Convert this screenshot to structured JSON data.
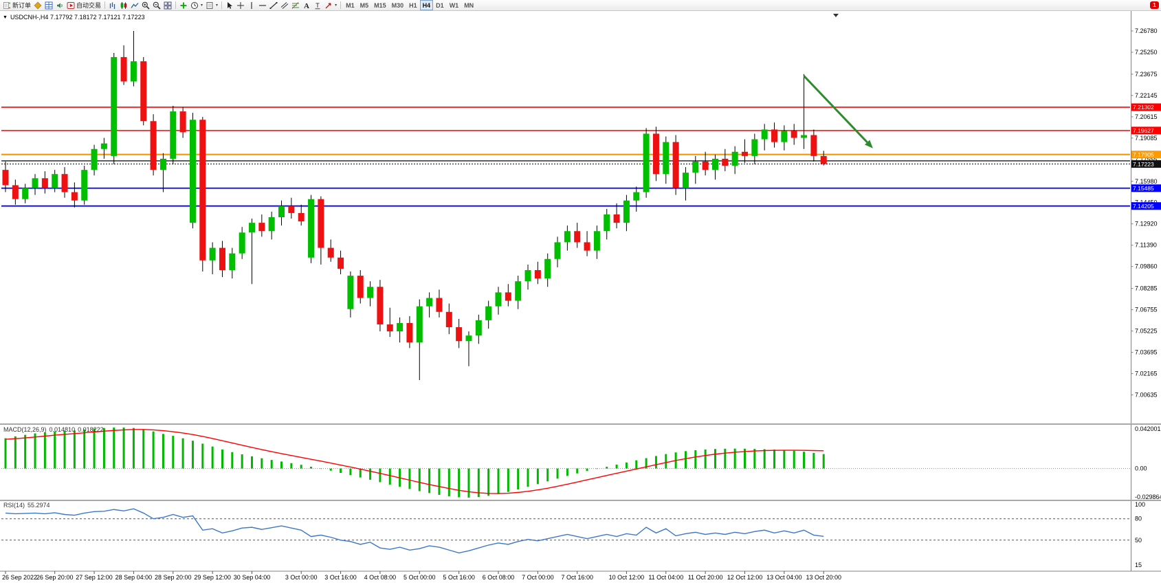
{
  "icons": {
    "chart_menu": "▼",
    "caret_down": "▾"
  },
  "toolbar": {
    "new_order_label": "新订单",
    "auto_trading_label": "自动交易",
    "notification_count": "1",
    "active_timeframe": "H4",
    "timeframes": [
      "M1",
      "M5",
      "M15",
      "M30",
      "H1",
      "H4",
      "D1",
      "W1",
      "MN"
    ],
    "groups": [
      {
        "items": [
          {
            "name": "new-order-button",
            "icon": "new-order",
            "label": "新订单"
          },
          {
            "name": "market-watch-button",
            "icon": "market-watch"
          },
          {
            "name": "data-window-button",
            "icon": "data-window"
          },
          {
            "name": "sound-button",
            "icon": "sound"
          },
          {
            "name": "auto-trading-button",
            "icon": "auto-trading",
            "label": "自动交易"
          }
        ]
      },
      {
        "items": [
          {
            "name": "bar-chart-button",
            "icon": "bars"
          },
          {
            "name": "candlestick-chart-button",
            "icon": "candles"
          },
          {
            "name": "line-chart-button",
            "icon": "line"
          },
          {
            "name": "zoom-in-button",
            "icon": "zoom-in"
          },
          {
            "name": "zoom-out-button",
            "icon": "zoom-out"
          },
          {
            "name": "tile-windows-button",
            "icon": "tile"
          }
        ]
      },
      {
        "items": [
          {
            "name": "indicators-button",
            "icon": "indicators"
          },
          {
            "name": "periods-button",
            "icon": "clock",
            "caret": true
          },
          {
            "name": "templates-button",
            "icon": "template",
            "caret": true
          }
        ]
      },
      {
        "items": [
          {
            "name": "cursor-button",
            "icon": "cursor"
          },
          {
            "name": "crosshair-button",
            "icon": "crosshair"
          },
          {
            "name": "vertical-line-button",
            "icon": "vline"
          },
          {
            "name": "horizontal-line-button",
            "icon": "hline"
          },
          {
            "name": "trendline-button",
            "icon": "tline"
          },
          {
            "name": "channel-button",
            "icon": "channel"
          },
          {
            "name": "fibonacci-button",
            "icon": "fibo"
          },
          {
            "name": "text-button",
            "icon": "textA"
          },
          {
            "name": "label-button",
            "icon": "labelT"
          },
          {
            "name": "arrows-button",
            "icon": "arrowset",
            "caret": true
          }
        ]
      }
    ]
  },
  "chart_data": {
    "type": "candlestick",
    "symbol": "USDCNH-",
    "timeframe": "H4",
    "title": "USDCNH-,H4 7.17792 7.18172 7.17121 7.17223",
    "current_bar": {
      "open": 7.17792,
      "high": 7.18172,
      "low": 7.17121,
      "close": 7.17223
    },
    "colors": {
      "up": "#00BE00",
      "down": "#EE1111",
      "macd_histogram": "#00B800",
      "macd_signal": "#FF0000",
      "rsi_line": "#3C78C8"
    },
    "price_ticks": [
      7.2678,
      7.2525,
      7.23675,
      7.22145,
      7.20615,
      7.19085,
      7.17555,
      7.1598,
      7.1445,
      7.1292,
      7.1139,
      7.0986,
      7.08285,
      7.06755,
      7.05225,
      7.03695,
      7.02165,
      7.00635
    ],
    "hlines": [
      {
        "name": "resistance-line-upper",
        "price": 7.21302,
        "color": "#FF0000",
        "label": "7.21302",
        "width": 1.6
      },
      {
        "name": "resistance-line-lower",
        "price": 7.19627,
        "color": "#FF0000",
        "label": "7.19627",
        "width": 1.6
      },
      {
        "name": "pivot-line-orange",
        "price": 7.17905,
        "color": "#FF9900",
        "label": "7.17905",
        "width": 2.2
      },
      {
        "name": "black-horizontal-line",
        "price": 7.1745,
        "color": "#000000",
        "label": "",
        "width": 1.2
      },
      {
        "name": "support-line-upper",
        "price": 7.15485,
        "color": "#0000FF",
        "label": "7.15485",
        "width": 1.8
      },
      {
        "name": "support-line-lower",
        "price": 7.14205,
        "color": "#0000FF",
        "label": "7.14205",
        "width": 1.8
      }
    ],
    "bid_line": {
      "price": 7.17223,
      "label": "7.17223"
    },
    "trend_arrow": {
      "from_bar": 82,
      "from_price": 7.2355,
      "to_bar": 89,
      "to_price": 7.1835,
      "color": "#2E8B2E"
    },
    "candles": [
      [
        7.168,
        7.174,
        7.152,
        7.157
      ],
      [
        7.157,
        7.161,
        7.143,
        7.147
      ],
      [
        7.147,
        7.158,
        7.144,
        7.155
      ],
      [
        7.155,
        7.165,
        7.15,
        7.162
      ],
      [
        7.162,
        7.167,
        7.151,
        7.155
      ],
      [
        7.155,
        7.168,
        7.152,
        7.165
      ],
      [
        7.165,
        7.17,
        7.148,
        7.152
      ],
      [
        7.152,
        7.159,
        7.141,
        7.146
      ],
      [
        7.146,
        7.171,
        7.143,
        7.168
      ],
      [
        7.168,
        7.186,
        7.164,
        7.183
      ],
      [
        7.183,
        7.191,
        7.176,
        7.187
      ],
      [
        7.178,
        7.252,
        7.172,
        7.249
      ],
      [
        7.249,
        7.2575,
        7.229,
        7.2315
      ],
      [
        7.2315,
        7.2678,
        7.228,
        7.246
      ],
      [
        7.246,
        7.249,
        7.2,
        7.203
      ],
      [
        7.203,
        7.208,
        7.164,
        7.168
      ],
      [
        7.168,
        7.18,
        7.152,
        7.176
      ],
      [
        7.176,
        7.214,
        7.172,
        7.21
      ],
      [
        7.21,
        7.213,
        7.191,
        7.195
      ],
      [
        7.13,
        7.209,
        7.126,
        7.204
      ],
      [
        7.204,
        7.206,
        7.095,
        7.103
      ],
      [
        7.103,
        7.116,
        7.093,
        7.112
      ],
      [
        7.112,
        7.117,
        7.091,
        7.096
      ],
      [
        7.096,
        7.112,
        7.09,
        7.108
      ],
      [
        7.108,
        7.127,
        7.104,
        7.123
      ],
      [
        7.123,
        7.133,
        7.086,
        7.13
      ],
      [
        7.13,
        7.136,
        7.12,
        7.124
      ],
      [
        7.124,
        7.138,
        7.118,
        7.134
      ],
      [
        7.134,
        7.146,
        7.128,
        7.142
      ],
      [
        7.142,
        7.148,
        7.133,
        7.137
      ],
      [
        7.137,
        7.143,
        7.128,
        7.131
      ],
      [
        7.105,
        7.15,
        7.101,
        7.147
      ],
      [
        7.147,
        7.149,
        7.1,
        7.112
      ],
      [
        7.112,
        7.118,
        7.102,
        7.105
      ],
      [
        7.105,
        7.11,
        7.093,
        7.097
      ],
      [
        7.068,
        7.095,
        7.062,
        7.092
      ],
      [
        7.092,
        7.096,
        7.072,
        7.076
      ],
      [
        7.076,
        7.088,
        7.07,
        7.084
      ],
      [
        7.084,
        7.089,
        7.052,
        7.057
      ],
      [
        7.057,
        7.069,
        7.048,
        7.052
      ],
      [
        7.052,
        7.062,
        7.044,
        7.058
      ],
      [
        7.058,
        7.063,
        7.04,
        7.044
      ],
      [
        7.044,
        7.075,
        7.017,
        7.07
      ],
      [
        7.07,
        7.08,
        7.062,
        7.076
      ],
      [
        7.076,
        7.082,
        7.062,
        7.066
      ],
      [
        7.066,
        7.072,
        7.05,
        7.055
      ],
      [
        7.055,
        7.061,
        7.04,
        7.045
      ],
      [
        7.045,
        7.052,
        7.027,
        7.049
      ],
      [
        7.049,
        7.064,
        7.043,
        7.06
      ],
      [
        7.06,
        7.074,
        7.054,
        7.07
      ],
      [
        7.07,
        7.084,
        7.064,
        7.08
      ],
      [
        7.08,
        7.086,
        7.07,
        7.074
      ],
      [
        7.074,
        7.092,
        7.068,
        7.088
      ],
      [
        7.088,
        7.1,
        7.082,
        7.096
      ],
      [
        7.096,
        7.102,
        7.086,
        7.09
      ],
      [
        7.09,
        7.108,
        7.084,
        7.104
      ],
      [
        7.104,
        7.12,
        7.098,
        7.116
      ],
      [
        7.116,
        7.128,
        7.11,
        7.124
      ],
      [
        7.124,
        7.13,
        7.112,
        7.116
      ],
      [
        7.116,
        7.124,
        7.106,
        7.11
      ],
      [
        7.11,
        7.128,
        7.104,
        7.124
      ],
      [
        7.124,
        7.14,
        7.118,
        7.136
      ],
      [
        7.136,
        7.144,
        7.126,
        7.13
      ],
      [
        7.13,
        7.15,
        7.124,
        7.146
      ],
      [
        7.146,
        7.156,
        7.138,
        7.152
      ],
      [
        7.152,
        7.198,
        7.148,
        7.194
      ],
      [
        7.194,
        7.199,
        7.16,
        7.165
      ],
      [
        7.165,
        7.192,
        7.158,
        7.188
      ],
      [
        7.188,
        7.193,
        7.15,
        7.155
      ],
      [
        7.155,
        7.17,
        7.146,
        7.166
      ],
      [
        7.166,
        7.178,
        7.158,
        7.174
      ],
      [
        7.174,
        7.181,
        7.164,
        7.168
      ],
      [
        7.168,
        7.179,
        7.161,
        7.176
      ],
      [
        7.176,
        7.183,
        7.167,
        7.171
      ],
      [
        7.171,
        7.185,
        7.165,
        7.181
      ],
      [
        7.181,
        7.19,
        7.173,
        7.178
      ],
      [
        7.178,
        7.194,
        7.172,
        7.19
      ],
      [
        7.19,
        7.201,
        7.182,
        7.197
      ],
      [
        7.197,
        7.202,
        7.184,
        7.188
      ],
      [
        7.188,
        7.2,
        7.182,
        7.196
      ],
      [
        7.196,
        7.201,
        7.186,
        7.191
      ],
      [
        7.191,
        7.2368,
        7.183,
        7.193
      ],
      [
        7.193,
        7.197,
        7.174,
        7.178
      ],
      [
        7.17792,
        7.18172,
        7.17121,
        7.17223
      ]
    ],
    "time_labels": [
      {
        "bar": 1,
        "text": "26 Sep 2022"
      },
      {
        "bar": 6,
        "text": "26 Sep 20:00"
      },
      {
        "bar": 10,
        "text": "27 Sep 12:00"
      },
      {
        "bar": 14,
        "text": "28 Sep 04:00"
      },
      {
        "bar": 18,
        "text": "28 Sep 20:00"
      },
      {
        "bar": 22,
        "text": "29 Sep 12:00"
      },
      {
        "bar": 26,
        "text": "30 Sep 04:00"
      },
      {
        "bar": 31,
        "text": "3 Oct 00:00"
      },
      {
        "bar": 35,
        "text": "3 Oct 16:00"
      },
      {
        "bar": 39,
        "text": "4 Oct 08:00"
      },
      {
        "bar": 43,
        "text": "5 Oct 00:00"
      },
      {
        "bar": 47,
        "text": "5 Oct 16:00"
      },
      {
        "bar": 51,
        "text": "6 Oct 08:00"
      },
      {
        "bar": 55,
        "text": "7 Oct 00:00"
      },
      {
        "bar": 59,
        "text": "7 Oct 16:00"
      },
      {
        "bar": 64,
        "text": "10 Oct 12:00"
      },
      {
        "bar": 68,
        "text": "11 Oct 04:00"
      },
      {
        "bar": 72,
        "text": "11 Oct 20:00"
      },
      {
        "bar": 76,
        "text": "12 Oct 12:00"
      },
      {
        "bar": 80,
        "text": "13 Oct 04:00"
      },
      {
        "bar": 84,
        "text": "13 Oct 20:00"
      }
    ]
  },
  "macd": {
    "name": "MACD(12,26,9)",
    "main_value": "0.014810",
    "signal_value": "0.018222",
    "scale_max": "0.042001",
    "scale_zero": "0.00",
    "scale_min": "-0.029864",
    "histogram": [
      0.031,
      0.033,
      0.0345,
      0.036,
      0.037,
      0.038,
      0.0385,
      0.039,
      0.04,
      0.041,
      0.0415,
      0.042,
      0.042,
      0.0415,
      0.04,
      0.038,
      0.0355,
      0.0335,
      0.031,
      0.0285,
      0.0255,
      0.0225,
      0.0195,
      0.0168,
      0.0145,
      0.0125,
      0.0105,
      0.0088,
      0.0072,
      0.0055,
      0.0038,
      0.0018,
      -0.0002,
      -0.0022,
      -0.0045,
      -0.0068,
      -0.0092,
      -0.0115,
      -0.014,
      -0.0165,
      -0.0188,
      -0.021,
      -0.0232,
      -0.0252,
      -0.027,
      -0.0285,
      -0.0295,
      -0.0298,
      -0.0292,
      -0.028,
      -0.0262,
      -0.024,
      -0.0215,
      -0.0188,
      -0.016,
      -0.0132,
      -0.0104,
      -0.0076,
      -0.005,
      -0.0026,
      -0.0004,
      0.0018,
      0.004,
      0.0062,
      0.0084,
      0.0106,
      0.0128,
      0.0148,
      0.0165,
      0.0178,
      0.0188,
      0.0195,
      0.02,
      0.0203,
      0.0204,
      0.0203,
      0.0201,
      0.0198,
      0.0194,
      0.0189,
      0.0182,
      0.0172,
      0.016,
      0.0148
    ],
    "signal": [
      0.03,
      0.0306,
      0.0314,
      0.0323,
      0.0332,
      0.0342,
      0.035,
      0.0358,
      0.0366,
      0.0375,
      0.0383,
      0.039,
      0.0396,
      0.04,
      0.04,
      0.0396,
      0.0388,
      0.0377,
      0.0364,
      0.0348,
      0.0329,
      0.0308,
      0.0285,
      0.0262,
      0.0239,
      0.0216,
      0.0194,
      0.0173,
      0.0153,
      0.0133,
      0.0114,
      0.0095,
      0.0076,
      0.0056,
      0.0036,
      0.0015,
      -0.0006,
      -0.0028,
      -0.005,
      -0.0073,
      -0.0096,
      -0.0119,
      -0.0142,
      -0.0164,
      -0.0185,
      -0.0205,
      -0.0223,
      -0.0238,
      -0.0249,
      -0.0255,
      -0.0256,
      -0.0253,
      -0.0245,
      -0.0234,
      -0.0219,
      -0.0202,
      -0.0182,
      -0.0161,
      -0.0139,
      -0.0116,
      -0.0094,
      -0.0071,
      -0.0049,
      -0.0027,
      -0.0005,
      0.0017,
      0.0039,
      0.0061,
      0.0082,
      0.0101,
      0.0118,
      0.0133,
      0.0147,
      0.0158,
      0.0167,
      0.0174,
      0.018,
      0.0184,
      0.0186,
      0.0187,
      0.0187,
      0.0186,
      0.0184,
      0.0182
    ]
  },
  "rsi": {
    "name": "RSI(14)",
    "value": "55.2974",
    "scale_values": [
      100,
      80,
      50,
      15
    ],
    "levels_dashed": [
      80,
      50
    ],
    "series": [
      88,
      87,
      87.5,
      88,
      87,
      88.5,
      86,
      85,
      88,
      90,
      90.5,
      93,
      91,
      94,
      88,
      80,
      82,
      86,
      82,
      84,
      64,
      66,
      60,
      63,
      67,
      68,
      65,
      67.5,
      70,
      67,
      64,
      55,
      57,
      54,
      50,
      48,
      44,
      47,
      39,
      37,
      40,
      36,
      38,
      42,
      40,
      36,
      32,
      35,
      39,
      43,
      46,
      44,
      48,
      51,
      49,
      52,
      55,
      58,
      55,
      52,
      55,
      58,
      55,
      59,
      57,
      68,
      60,
      66,
      56,
      59,
      61,
      58,
      60,
      58,
      61,
      59,
      62,
      64,
      60,
      63,
      60,
      64,
      57,
      55.2974
    ]
  }
}
